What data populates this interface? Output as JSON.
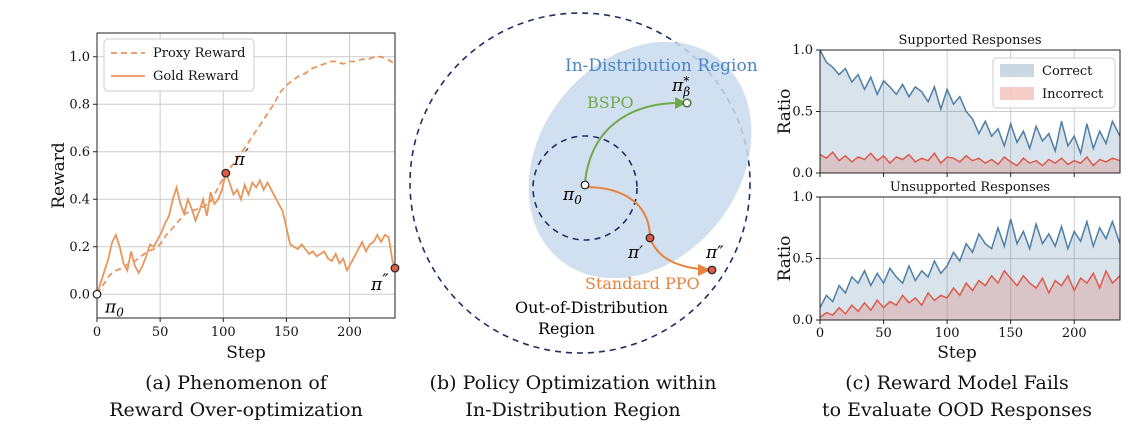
{
  "chart_data": [
    {
      "type": "line",
      "xlabel": "Step",
      "ylabel": "Reward",
      "xlim": [
        0,
        236
      ],
      "ylim": [
        -0.1,
        1.1
      ],
      "x_ticks": [
        0,
        50,
        100,
        150,
        200
      ],
      "y_ticks": [
        0.0,
        0.2,
        0.4,
        0.6,
        0.8,
        1.0
      ],
      "x_tick_labels": [
        "0",
        "50",
        "100",
        "150",
        "200"
      ],
      "y_tick_labels": [
        "0.0",
        "0.2",
        "0.4",
        "0.6",
        "0.8",
        "1.0"
      ],
      "legend_position": "top-left",
      "caption": [
        "(a) Phenomenon of",
        "Reward Over-optimization"
      ],
      "series": [
        {
          "name": "Proxy Reward",
          "style": "dashed",
          "color": "#E8965A",
          "x": [
            0,
            5,
            10,
            15,
            20,
            25,
            30,
            35,
            40,
            45,
            50,
            55,
            60,
            65,
            70,
            75,
            80,
            85,
            90,
            95,
            100,
            105,
            110,
            115,
            120,
            125,
            130,
            135,
            140,
            145,
            150,
            155,
            160,
            165,
            170,
            175,
            180,
            185,
            190,
            195,
            200,
            205,
            210,
            215,
            220,
            225,
            230,
            236
          ],
          "y": [
            0.0,
            0.04,
            0.08,
            0.1,
            0.11,
            0.13,
            0.14,
            0.16,
            0.18,
            0.19,
            0.21,
            0.25,
            0.28,
            0.31,
            0.34,
            0.35,
            0.36,
            0.37,
            0.39,
            0.44,
            0.49,
            0.53,
            0.56,
            0.6,
            0.64,
            0.68,
            0.72,
            0.76,
            0.8,
            0.85,
            0.88,
            0.9,
            0.92,
            0.93,
            0.95,
            0.96,
            0.97,
            0.98,
            0.98,
            0.97,
            0.98,
            0.98,
            0.99,
            0.99,
            1.0,
            1.0,
            0.99,
            0.97
          ]
        },
        {
          "name": "Gold Reward",
          "style": "solid",
          "color": "#E8965A",
          "x": [
            0,
            3,
            6,
            9,
            12,
            15,
            18,
            21,
            24,
            27,
            30,
            33,
            36,
            39,
            42,
            45,
            48,
            51,
            54,
            57,
            60,
            63,
            66,
            69,
            72,
            75,
            78,
            81,
            84,
            87,
            90,
            93,
            96,
            99,
            102,
            105,
            108,
            111,
            114,
            117,
            120,
            123,
            126,
            129,
            132,
            135,
            138,
            141,
            144,
            147,
            150,
            153,
            156,
            159,
            162,
            165,
            168,
            171,
            174,
            177,
            180,
            183,
            186,
            189,
            192,
            195,
            198,
            201,
            204,
            207,
            210,
            213,
            216,
            219,
            222,
            225,
            228,
            231,
            234,
            236
          ],
          "y": [
            0.0,
            0.05,
            0.1,
            0.15,
            0.22,
            0.25,
            0.2,
            0.13,
            0.1,
            0.18,
            0.12,
            0.09,
            0.12,
            0.16,
            0.21,
            0.2,
            0.23,
            0.26,
            0.3,
            0.33,
            0.4,
            0.45,
            0.38,
            0.34,
            0.4,
            0.36,
            0.31,
            0.35,
            0.4,
            0.33,
            0.43,
            0.38,
            0.4,
            0.44,
            0.51,
            0.47,
            0.42,
            0.44,
            0.4,
            0.46,
            0.42,
            0.47,
            0.45,
            0.48,
            0.44,
            0.47,
            0.44,
            0.41,
            0.38,
            0.35,
            0.28,
            0.21,
            0.2,
            0.19,
            0.21,
            0.19,
            0.17,
            0.18,
            0.16,
            0.17,
            0.18,
            0.15,
            0.14,
            0.17,
            0.13,
            0.15,
            0.1,
            0.13,
            0.16,
            0.19,
            0.22,
            0.18,
            0.21,
            0.22,
            0.25,
            0.22,
            0.25,
            0.24,
            0.14,
            0.11
          ]
        }
      ],
      "markers": [
        {
          "label": "π",
          "sub": "0",
          "prime": "",
          "x": 0,
          "y": 0.0,
          "color": "#ffffff"
        },
        {
          "label": "π",
          "sub": "",
          "prime": "′",
          "x": 102,
          "y": 0.51,
          "color": "#E15A45"
        },
        {
          "label": "π",
          "sub": "",
          "prime": "″",
          "x": 236,
          "y": 0.11,
          "color": "#E15A45"
        }
      ]
    },
    {
      "type": "diagram",
      "caption": [
        "(b) Policy Optimization within",
        "In-Distribution Region"
      ],
      "labels": {
        "in_dist": "In-Distribution Region",
        "bspo": "BSPO",
        "ppo": "Standard PPO",
        "ood_line1": "Out-of-Distribution",
        "ood_line2": "Region",
        "pi": "π",
        "sub0": "0",
        "star": "*",
        "beta": "β",
        "prime": "′",
        "dprime": "″"
      },
      "colors": {
        "bspo": "#72A84A",
        "ppo": "#E8823C",
        "region": "#C8DAEF",
        "circle": "#1F2F66"
      }
    },
    {
      "type": "area",
      "caption": [
        "(c) Reward Model Fails",
        "to Evaluate OOD Responses"
      ],
      "xlabel": "Step",
      "ylabel": "Ratio",
      "x_ticks": [
        0,
        50,
        100,
        150,
        200
      ],
      "x_tick_labels": [
        "0",
        "50",
        "100",
        "150",
        "200"
      ],
      "y_ticks": [
        0.0,
        0.5,
        1.0
      ],
      "y_tick_labels": [
        "0.0",
        "0.5",
        "1.0"
      ],
      "xlim": [
        0,
        236
      ],
      "ylim": [
        0,
        1
      ],
      "legend_position": "top-right",
      "legend": [
        {
          "name": "Correct",
          "color": "#4E7FA6"
        },
        {
          "name": "Incorrect",
          "color": "#E05A4A"
        }
      ],
      "panels": [
        {
          "title": "Supported Responses",
          "series": [
            {
              "name": "Correct",
              "color": "#4E7FA6",
              "x": [
                0,
                5,
                10,
                15,
                20,
                25,
                30,
                35,
                40,
                45,
                50,
                55,
                60,
                65,
                70,
                75,
                80,
                85,
                90,
                95,
                100,
                105,
                110,
                115,
                120,
                125,
                130,
                135,
                140,
                145,
                150,
                155,
                160,
                165,
                170,
                175,
                180,
                185,
                190,
                195,
                200,
                205,
                210,
                215,
                220,
                225,
                230,
                236
              ],
              "y": [
                1.0,
                0.9,
                0.86,
                0.8,
                0.85,
                0.74,
                0.8,
                0.68,
                0.78,
                0.64,
                0.75,
                0.7,
                0.64,
                0.72,
                0.62,
                0.7,
                0.66,
                0.58,
                0.7,
                0.52,
                0.68,
                0.56,
                0.62,
                0.5,
                0.44,
                0.32,
                0.42,
                0.3,
                0.36,
                0.22,
                0.4,
                0.25,
                0.34,
                0.2,
                0.38,
                0.26,
                0.32,
                0.18,
                0.42,
                0.22,
                0.3,
                0.16,
                0.4,
                0.2,
                0.34,
                0.24,
                0.42,
                0.3
              ]
            },
            {
              "name": "Incorrect",
              "color": "#E05A4A",
              "x": [
                0,
                5,
                10,
                15,
                20,
                25,
                30,
                35,
                40,
                45,
                50,
                55,
                60,
                65,
                70,
                75,
                80,
                85,
                90,
                95,
                100,
                105,
                110,
                115,
                120,
                125,
                130,
                135,
                140,
                145,
                150,
                155,
                160,
                165,
                170,
                175,
                180,
                185,
                190,
                195,
                200,
                205,
                210,
                215,
                220,
                225,
                230,
                236
              ],
              "y": [
                0.15,
                0.12,
                0.17,
                0.1,
                0.14,
                0.09,
                0.13,
                0.11,
                0.16,
                0.1,
                0.14,
                0.08,
                0.13,
                0.11,
                0.15,
                0.09,
                0.12,
                0.1,
                0.16,
                0.08,
                0.13,
                0.12,
                0.09,
                0.14,
                0.1,
                0.12,
                0.08,
                0.11,
                0.07,
                0.13,
                0.09,
                0.06,
                0.12,
                0.08,
                0.1,
                0.06,
                0.11,
                0.08,
                0.12,
                0.07,
                0.1,
                0.08,
                0.13,
                0.06,
                0.11,
                0.09,
                0.12,
                0.1
              ]
            }
          ]
        },
        {
          "title": "Unsupported Responses",
          "series": [
            {
              "name": "Correct",
              "color": "#4E7FA6",
              "x": [
                0,
                5,
                10,
                15,
                20,
                25,
                30,
                35,
                40,
                45,
                50,
                55,
                60,
                65,
                70,
                75,
                80,
                85,
                90,
                95,
                100,
                105,
                110,
                115,
                120,
                125,
                130,
                135,
                140,
                145,
                150,
                155,
                160,
                165,
                170,
                175,
                180,
                185,
                190,
                195,
                200,
                205,
                210,
                215,
                220,
                225,
                230,
                236
              ],
              "y": [
                0.1,
                0.2,
                0.15,
                0.28,
                0.22,
                0.35,
                0.3,
                0.4,
                0.28,
                0.38,
                0.3,
                0.42,
                0.35,
                0.3,
                0.44,
                0.32,
                0.4,
                0.35,
                0.48,
                0.38,
                0.44,
                0.55,
                0.48,
                0.62,
                0.55,
                0.7,
                0.62,
                0.58,
                0.75,
                0.6,
                0.82,
                0.62,
                0.72,
                0.58,
                0.78,
                0.62,
                0.7,
                0.6,
                0.76,
                0.58,
                0.72,
                0.64,
                0.8,
                0.6,
                0.75,
                0.66,
                0.8,
                0.62
              ]
            },
            {
              "name": "Incorrect",
              "color": "#E05A4A",
              "x": [
                0,
                5,
                10,
                15,
                20,
                25,
                30,
                35,
                40,
                45,
                50,
                55,
                60,
                65,
                70,
                75,
                80,
                85,
                90,
                95,
                100,
                105,
                110,
                115,
                120,
                125,
                130,
                135,
                140,
                145,
                150,
                155,
                160,
                165,
                170,
                175,
                180,
                185,
                190,
                195,
                200,
                205,
                210,
                215,
                220,
                225,
                230,
                236
              ],
              "y": [
                0.02,
                0.06,
                0.04,
                0.1,
                0.05,
                0.12,
                0.07,
                0.14,
                0.08,
                0.16,
                0.1,
                0.15,
                0.12,
                0.2,
                0.14,
                0.18,
                0.12,
                0.22,
                0.16,
                0.2,
                0.18,
                0.26,
                0.2,
                0.3,
                0.24,
                0.32,
                0.28,
                0.36,
                0.3,
                0.4,
                0.34,
                0.28,
                0.36,
                0.3,
                0.26,
                0.34,
                0.22,
                0.32,
                0.28,
                0.36,
                0.24,
                0.34,
                0.3,
                0.38,
                0.26,
                0.4,
                0.3,
                0.36
              ]
            }
          ]
        }
      ]
    }
  ]
}
